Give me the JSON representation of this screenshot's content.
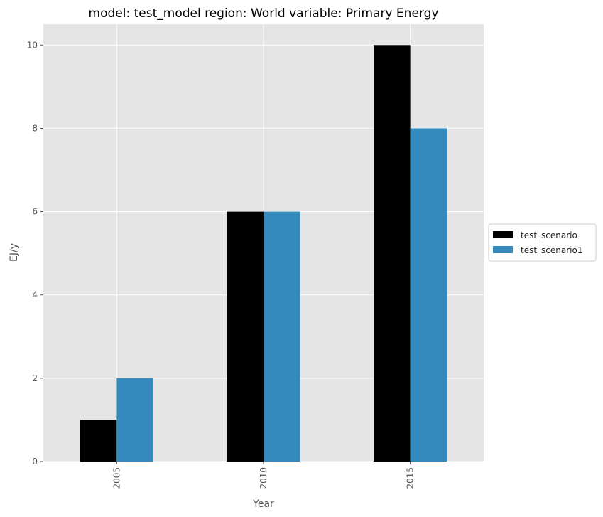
{
  "chart_data": {
    "type": "bar",
    "title": "model: test_model region: World variable: Primary Energy",
    "xlabel": "Year",
    "ylabel": "EJ/y",
    "categories": [
      "2005",
      "2010",
      "2015"
    ],
    "series": [
      {
        "name": "test_scenario",
        "values": [
          1,
          6,
          10
        ],
        "color": "#000000"
      },
      {
        "name": "test_scenario1",
        "values": [
          2,
          6,
          8
        ],
        "color": "#348abd"
      }
    ],
    "ylim": [
      0,
      10.5
    ],
    "yticks": [
      "0",
      "2",
      "4",
      "6",
      "8",
      "10"
    ],
    "grid": true,
    "legend_position": "right",
    "background_color": "#e5e5e5",
    "grid_color": "#ffffff"
  }
}
